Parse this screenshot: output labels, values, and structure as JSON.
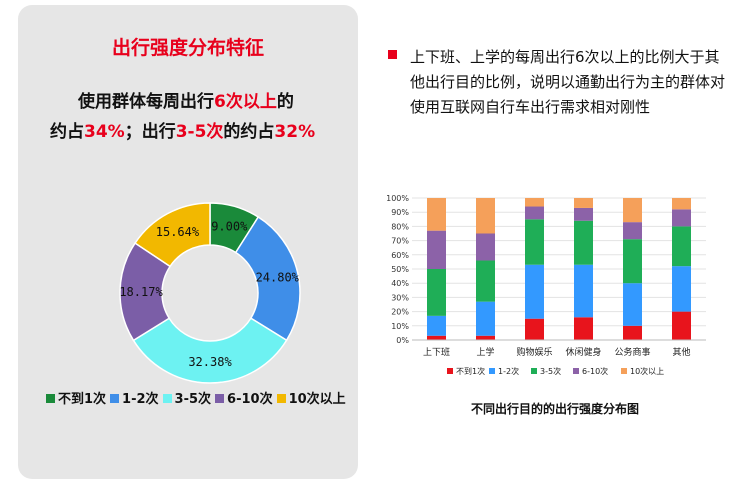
{
  "left": {
    "title": "出行强度分布特征",
    "line1_prefix": "使用群体每周出行",
    "line1_highlight": "6次以上",
    "line1_suffix": "的",
    "line2_a": "约占",
    "line2_b": "34%",
    "line2_c": "；出行",
    "line2_d": "3-5次",
    "line2_e": "的约占",
    "line2_f": "32%"
  },
  "right": {
    "description": "上下班、上学的每周出行6次以上的比例大于其他出行目的比例，说明以通勤出行为主的群体对使用互联网自行车出行需求相对刚性",
    "caption": "不同出行目的的出行强度分布图"
  },
  "colors": {
    "red": "#e8001c",
    "green": "#1a8a3a",
    "blue": "#3f8ee8",
    "cyan": "#6df2f2",
    "purple": "#7b5ea7",
    "yellow": "#f2b800",
    "bar_red": "#e8141c",
    "bar_blue": "#3399ff",
    "bar_green": "#1fae57",
    "bar_purple": "#8c62a8",
    "bar_orange": "#f5a05a"
  },
  "chart_data": [
    {
      "type": "pie",
      "style": "donut",
      "labels": [
        "不到1次",
        "1-2次",
        "3-5次",
        "6-10次",
        "10次以上"
      ],
      "values": [
        9.0,
        24.8,
        32.38,
        18.17,
        15.64
      ],
      "value_labels": [
        "9.00%",
        "24.80%",
        "32.38%",
        "18.17%",
        "15.64%"
      ],
      "colors": [
        "#1a8a3a",
        "#3f8ee8",
        "#6df2f2",
        "#7b5ea7",
        "#f2b800"
      ],
      "legend_position": "bottom"
    },
    {
      "type": "bar",
      "stacked": true,
      "categories": [
        "上下班",
        "上学",
        "购物娱乐",
        "休闲健身",
        "公务商事",
        "其他"
      ],
      "series": [
        {
          "name": "不到1次",
          "color": "#e8141c",
          "values": [
            3,
            3,
            15,
            16,
            10,
            20
          ]
        },
        {
          "name": "1-2次",
          "color": "#3399ff",
          "values": [
            14,
            24,
            38,
            37,
            30,
            32
          ]
        },
        {
          "name": "3-5次",
          "color": "#1fae57",
          "values": [
            33,
            29,
            32,
            31,
            31,
            28
          ]
        },
        {
          "name": "6-10次",
          "color": "#8c62a8",
          "values": [
            27,
            19,
            9,
            9,
            12,
            12
          ]
        },
        {
          "name": "10次以上",
          "color": "#f5a05a",
          "values": [
            23,
            25,
            6,
            7,
            17,
            8
          ]
        }
      ],
      "y_ticks": [
        "0%",
        "10%",
        "20%",
        "30%",
        "40%",
        "50%",
        "60%",
        "70%",
        "80%",
        "90%",
        "100%"
      ],
      "ylim": [
        0,
        100
      ],
      "grid": true,
      "legend_position": "bottom",
      "title": "不同出行目的的出行强度分布图"
    }
  ]
}
